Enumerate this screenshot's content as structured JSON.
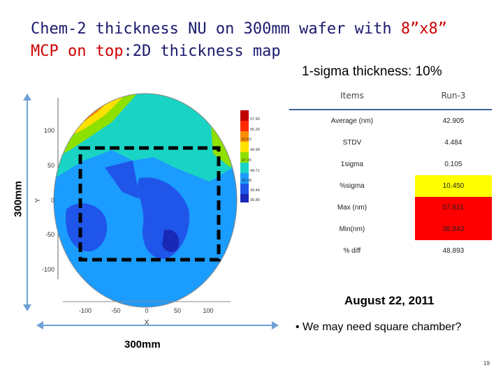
{
  "title": {
    "line1": "Chem-2 thickness NU on 300mm wafer with ",
    "highlight": "8”x8”",
    "line2": "MCP on top",
    "line2_rest": ":2D thickness map"
  },
  "sigma_heading": "1-sigma thickness: 10%",
  "dimension_vertical": "300mm",
  "dimension_horizontal": "300mm",
  "map": {
    "x_label": "X",
    "y_label": "Y",
    "x_ticks": [
      "-100",
      "-50",
      "0",
      "50",
      "100"
    ],
    "y_ticks": [
      "100",
      "50",
      "0",
      "-50",
      "-100"
    ],
    "colorbar": [
      "57.90",
      "55.26",
      "52.63",
      "49.99",
      "47.35",
      "44.71",
      "42.08",
      "39.44",
      "36.80"
    ],
    "colorbar_colors": [
      "#c00000",
      "#ff2a00",
      "#ff8c00",
      "#ffe100",
      "#8ee000",
      "#19d4c4",
      "#1b9cff",
      "#1f55e8",
      "#1a28b8"
    ]
  },
  "table": {
    "headers": [
      "Items",
      "Run-3"
    ],
    "rows": [
      {
        "item": "Average (nm)",
        "value": "42.905",
        "highlight": ""
      },
      {
        "item": "STDV",
        "value": "4.484",
        "highlight": ""
      },
      {
        "item": "1sigma",
        "value": "0.105",
        "highlight": ""
      },
      {
        "item": "%sigma",
        "value": "10.450",
        "highlight": "yellow"
      },
      {
        "item": "Max (nm)",
        "value": "57.821",
        "highlight": "red"
      },
      {
        "item": "Min(nm)",
        "value": "36.843",
        "highlight": "red"
      },
      {
        "item": "% diff",
        "value": "48.893",
        "highlight": ""
      }
    ]
  },
  "date": "August 22, 2011",
  "note": "• We may need square chamber?",
  "page_number": "19"
}
